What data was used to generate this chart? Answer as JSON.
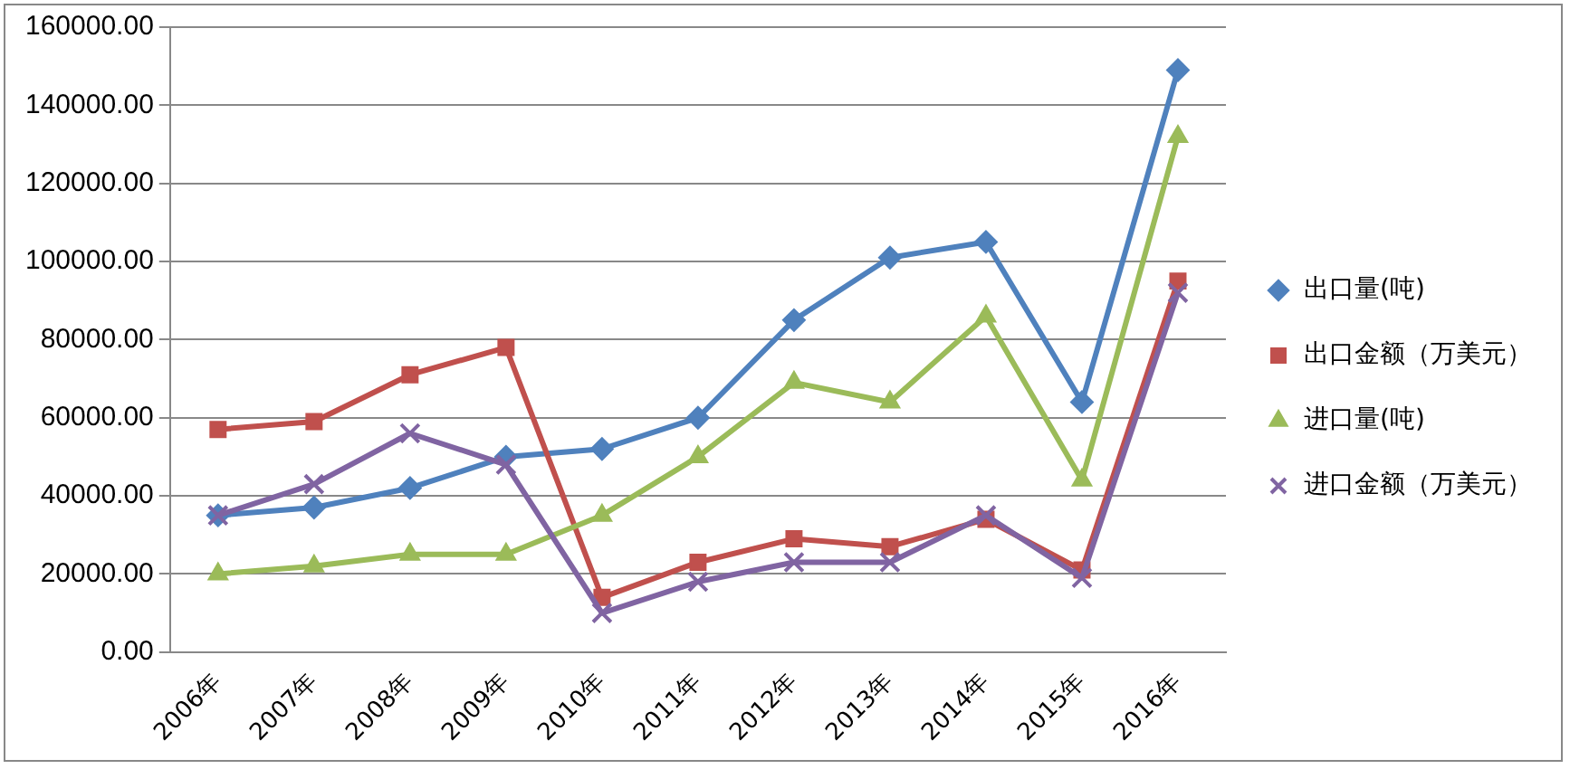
{
  "chart_data": {
    "type": "line",
    "categories": [
      "2006年",
      "2007年",
      "2008年",
      "2009年",
      "2010年",
      "2011年",
      "2012年",
      "2013年",
      "2014年",
      "2015年",
      "2016年"
    ],
    "series": [
      {
        "name": "出口量(吨)",
        "color": "#4f81bd",
        "marker": "diamond",
        "values": [
          35000,
          37000,
          42000,
          50000,
          52000,
          60000,
          85000,
          101000,
          105000,
          64000,
          149000
        ]
      },
      {
        "name": "出口金额（万美元）",
        "color": "#c0504d",
        "marker": "square",
        "values": [
          57000,
          59000,
          71000,
          78000,
          14000,
          23000,
          29000,
          27000,
          34000,
          21000,
          95000
        ]
      },
      {
        "name": "进口量(吨)",
        "color": "#9bbb59",
        "marker": "triangle",
        "values": [
          20000,
          22000,
          25000,
          25000,
          35000,
          50000,
          69000,
          64000,
          86000,
          44000,
          132000
        ]
      },
      {
        "name": "进口金额（万美元）",
        "color": "#8064a2",
        "marker": "cross",
        "values": [
          35000,
          43000,
          56000,
          48000,
          10000,
          18000,
          23000,
          23000,
          35000,
          19000,
          92000
        ]
      }
    ],
    "ylim": [
      0,
      160000
    ],
    "yticks": [
      {
        "value": 0,
        "label": "0.00"
      },
      {
        "value": 20000,
        "label": "20000.00"
      },
      {
        "value": 40000,
        "label": "40000.00"
      },
      {
        "value": 60000,
        "label": "60000.00"
      },
      {
        "value": 80000,
        "label": "80000.00"
      },
      {
        "value": 100000,
        "label": "100000.00"
      },
      {
        "value": 120000,
        "label": "120000.00"
      },
      {
        "value": 140000,
        "label": "140000.00"
      },
      {
        "value": 160000,
        "label": "160000.00"
      }
    ],
    "grid": "y",
    "legend": "right"
  }
}
